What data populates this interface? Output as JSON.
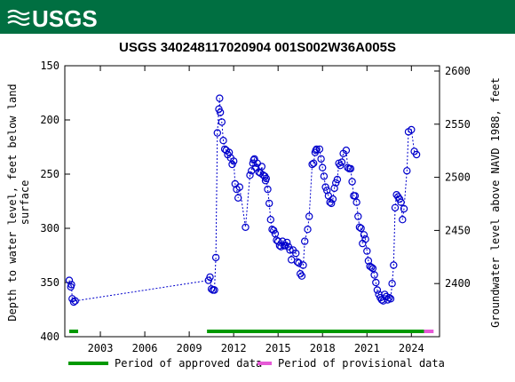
{
  "header": {
    "logo_text": "USGS",
    "bar_color": "#006f41"
  },
  "chart_data": {
    "type": "scatter",
    "title": "USGS 340248117020904 001S002W36A005S",
    "ylabel_left": [
      "Depth to water level, feet below land",
      "surface"
    ],
    "ylabel_right": "Groundwater level above NAVD 1988, feet",
    "x_range": [
      2000.6,
      2025.9
    ],
    "y_range_left": [
      400,
      150
    ],
    "y_range_right": [
      2350,
      2605
    ],
    "x_ticks": [
      {
        "value": 2003,
        "label": "2003"
      },
      {
        "value": 2006,
        "label": "2006"
      },
      {
        "value": 2009,
        "label": "2009"
      },
      {
        "value": 2012,
        "label": "2012"
      },
      {
        "value": 2015,
        "label": "2015"
      },
      {
        "value": 2018,
        "label": "2018"
      },
      {
        "value": 2021,
        "label": "2021"
      },
      {
        "value": 2024,
        "label": "2024"
      }
    ],
    "y_ticks_left": [
      {
        "value": 150,
        "label": "150"
      },
      {
        "value": 200,
        "label": "200"
      },
      {
        "value": 250,
        "label": "250"
      },
      {
        "value": 300,
        "label": "300"
      },
      {
        "value": 350,
        "label": "350"
      },
      {
        "value": 400,
        "label": "400"
      }
    ],
    "y_ticks_right": [
      {
        "value": 2400,
        "label": "2400"
      },
      {
        "value": 2450,
        "label": "2450"
      },
      {
        "value": 2500,
        "label": "2500"
      },
      {
        "value": 2550,
        "label": "2550"
      },
      {
        "value": 2600,
        "label": "2600"
      }
    ],
    "series": [
      {
        "color": "#0000cc",
        "points": [
          [
            2000.9,
            348
          ],
          [
            2001.0,
            354
          ],
          [
            2001.05,
            352
          ],
          [
            2001.1,
            365
          ],
          [
            2001.2,
            368
          ],
          [
            2001.3,
            367
          ],
          [
            2010.3,
            348
          ],
          [
            2010.4,
            345
          ],
          [
            2010.5,
            356
          ],
          [
            2010.6,
            357
          ],
          [
            2010.7,
            357
          ],
          [
            2010.8,
            327
          ],
          [
            2010.9,
            212
          ],
          [
            2011.0,
            190
          ],
          [
            2011.05,
            180
          ],
          [
            2011.1,
            193
          ],
          [
            2011.2,
            202
          ],
          [
            2011.3,
            219
          ],
          [
            2011.4,
            227
          ],
          [
            2011.5,
            228
          ],
          [
            2011.6,
            232
          ],
          [
            2011.7,
            230
          ],
          [
            2011.8,
            235
          ],
          [
            2011.9,
            241
          ],
          [
            2012.0,
            238
          ],
          [
            2012.1,
            259
          ],
          [
            2012.2,
            264
          ],
          [
            2012.3,
            272
          ],
          [
            2012.4,
            262
          ],
          [
            2012.8,
            299
          ],
          [
            2013.1,
            251
          ],
          [
            2013.2,
            247
          ],
          [
            2013.3,
            240
          ],
          [
            2013.35,
            237
          ],
          [
            2013.4,
            236
          ],
          [
            2013.5,
            244
          ],
          [
            2013.6,
            240
          ],
          [
            2013.7,
            248
          ],
          [
            2013.8,
            249
          ],
          [
            2013.9,
            243
          ],
          [
            2014.0,
            251
          ],
          [
            2014.1,
            252
          ],
          [
            2014.15,
            256
          ],
          [
            2014.2,
            254
          ],
          [
            2014.3,
            264
          ],
          [
            2014.4,
            277
          ],
          [
            2014.5,
            292
          ],
          [
            2014.6,
            301
          ],
          [
            2014.7,
            302
          ],
          [
            2014.8,
            305
          ],
          [
            2014.9,
            311
          ],
          [
            2015.0,
            312
          ],
          [
            2015.1,
            316
          ],
          [
            2015.2,
            317
          ],
          [
            2015.3,
            312
          ],
          [
            2015.4,
            316
          ],
          [
            2015.5,
            316
          ],
          [
            2015.6,
            313
          ],
          [
            2015.7,
            317
          ],
          [
            2015.8,
            320
          ],
          [
            2015.9,
            329
          ],
          [
            2016.0,
            320
          ],
          [
            2016.2,
            323
          ],
          [
            2016.3,
            331
          ],
          [
            2016.4,
            332
          ],
          [
            2016.5,
            342
          ],
          [
            2016.6,
            344
          ],
          [
            2016.7,
            334
          ],
          [
            2016.8,
            312
          ],
          [
            2017.0,
            301
          ],
          [
            2017.1,
            289
          ],
          [
            2017.3,
            241
          ],
          [
            2017.4,
            240
          ],
          [
            2017.5,
            230
          ],
          [
            2017.55,
            228
          ],
          [
            2017.6,
            227
          ],
          [
            2017.8,
            227
          ],
          [
            2017.9,
            236
          ],
          [
            2018.0,
            244
          ],
          [
            2018.1,
            252
          ],
          [
            2018.2,
            262
          ],
          [
            2018.3,
            265
          ],
          [
            2018.4,
            270
          ],
          [
            2018.5,
            276
          ],
          [
            2018.6,
            277
          ],
          [
            2018.7,
            273
          ],
          [
            2018.8,
            263
          ],
          [
            2018.9,
            258
          ],
          [
            2019.0,
            255
          ],
          [
            2019.1,
            240
          ],
          [
            2019.2,
            242
          ],
          [
            2019.3,
            239
          ],
          [
            2019.4,
            231
          ],
          [
            2019.6,
            228
          ],
          [
            2019.7,
            244
          ],
          [
            2019.8,
            245
          ],
          [
            2019.9,
            245
          ],
          [
            2020.0,
            257
          ],
          [
            2020.1,
            270
          ],
          [
            2020.2,
            270
          ],
          [
            2020.3,
            276
          ],
          [
            2020.4,
            289
          ],
          [
            2020.5,
            299
          ],
          [
            2020.6,
            300
          ],
          [
            2020.7,
            314
          ],
          [
            2020.8,
            306
          ],
          [
            2020.9,
            310
          ],
          [
            2021.0,
            321
          ],
          [
            2021.1,
            330
          ],
          [
            2021.2,
            335
          ],
          [
            2021.3,
            336
          ],
          [
            2021.4,
            337
          ],
          [
            2021.5,
            343
          ],
          [
            2021.6,
            350
          ],
          [
            2021.7,
            357
          ],
          [
            2021.8,
            361
          ],
          [
            2021.9,
            364
          ],
          [
            2022.0,
            366
          ],
          [
            2022.1,
            367
          ],
          [
            2022.2,
            361
          ],
          [
            2022.3,
            363
          ],
          [
            2022.4,
            366
          ],
          [
            2022.5,
            364
          ],
          [
            2022.6,
            365
          ],
          [
            2022.7,
            351
          ],
          [
            2022.8,
            334
          ],
          [
            2022.9,
            281
          ],
          [
            2023.0,
            269
          ],
          [
            2023.1,
            271
          ],
          [
            2023.2,
            273
          ],
          [
            2023.3,
            276
          ],
          [
            2023.4,
            292
          ],
          [
            2023.5,
            282
          ],
          [
            2023.7,
            247
          ],
          [
            2023.8,
            211
          ],
          [
            2024.0,
            209
          ],
          [
            2024.2,
            229
          ],
          [
            2024.35,
            232
          ]
        ]
      }
    ],
    "approval_periods": [
      {
        "status": "approved",
        "start": 2000.9,
        "end": 2001.5
      },
      {
        "status": "approved",
        "start": 2010.2,
        "end": 2024.85
      },
      {
        "status": "provisional",
        "start": 2024.85,
        "end": 2025.5
      }
    ],
    "legend": [
      {
        "label": "Period of approved data",
        "color": "#009900"
      },
      {
        "label": "Period of provisional data",
        "color": "#e659d6"
      }
    ],
    "grid": false,
    "legend_position": "bottom"
  }
}
